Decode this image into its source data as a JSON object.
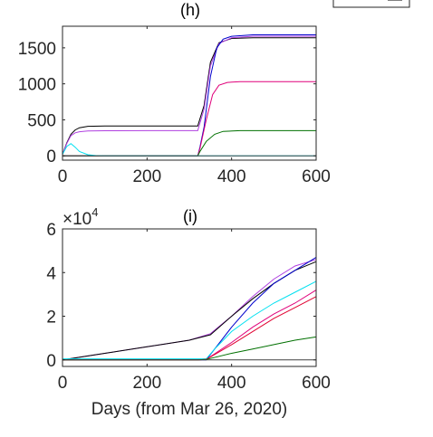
{
  "chart_data": [
    {
      "type": "line",
      "title": "(h)",
      "xlabel": "",
      "ylabel": "",
      "xlim": [
        0,
        600
      ],
      "ylim": [
        -60,
        1800
      ],
      "xticks": [
        "0",
        "200",
        "400",
        "600"
      ],
      "yticks": [
        "0",
        "500",
        "1000",
        "1500"
      ],
      "xtick_values": [
        0,
        200,
        400,
        600
      ],
      "ytick_values": [
        0,
        500,
        1000,
        1500
      ],
      "grid": false,
      "series": [
        {
          "color": "#000000",
          "points": [
            [
              0,
              20
            ],
            [
              10,
              180
            ],
            [
              20,
              300
            ],
            [
              30,
              360
            ],
            [
              40,
              390
            ],
            [
              60,
              410
            ],
            [
              100,
              415
            ],
            [
              200,
              415
            ],
            [
              320,
              415
            ],
            [
              335,
              700
            ],
            [
              350,
              1300
            ],
            [
              370,
              1570
            ],
            [
              400,
              1630
            ],
            [
              450,
              1640
            ],
            [
              600,
              1640
            ]
          ]
        },
        {
          "color": "#b040e0",
          "points": [
            [
              0,
              20
            ],
            [
              10,
              170
            ],
            [
              20,
              280
            ],
            [
              30,
              320
            ],
            [
              40,
              335
            ],
            [
              60,
              345
            ],
            [
              100,
              348
            ],
            [
              200,
              350
            ],
            [
              320,
              350
            ],
            [
              335,
              650
            ],
            [
              350,
              1250
            ],
            [
              370,
              1560
            ],
            [
              400,
              1640
            ],
            [
              450,
              1660
            ],
            [
              600,
              1660
            ]
          ]
        },
        {
          "color": "#0000cc",
          "points": [
            [
              0,
              0
            ],
            [
              320,
              0
            ],
            [
              325,
              120
            ],
            [
              335,
              400
            ],
            [
              350,
              1100
            ],
            [
              365,
              1500
            ],
            [
              380,
              1620
            ],
            [
              400,
              1660
            ],
            [
              450,
              1680
            ],
            [
              600,
              1680
            ]
          ]
        },
        {
          "color": "#e0007a",
          "points": [
            [
              0,
              0
            ],
            [
              320,
              0
            ],
            [
              325,
              100
            ],
            [
              340,
              500
            ],
            [
              355,
              850
            ],
            [
              370,
              980
            ],
            [
              390,
              1020
            ],
            [
              420,
              1030
            ],
            [
              600,
              1030
            ]
          ]
        },
        {
          "color": "#007000",
          "points": [
            [
              0,
              0
            ],
            [
              320,
              0
            ],
            [
              325,
              60
            ],
            [
              340,
              200
            ],
            [
              360,
              300
            ],
            [
              380,
              340
            ],
            [
              420,
              350
            ],
            [
              600,
              350
            ]
          ]
        },
        {
          "color": "#00e0f0",
          "points": [
            [
              0,
              20
            ],
            [
              10,
              130
            ],
            [
              20,
              170
            ],
            [
              30,
              120
            ],
            [
              40,
              60
            ],
            [
              60,
              15
            ],
            [
              80,
              3
            ],
            [
              100,
              0
            ],
            [
              600,
              0
            ]
          ]
        },
        {
          "color": "#404040",
          "points": [
            [
              0,
              0
            ],
            [
              600,
              0
            ]
          ]
        }
      ]
    },
    {
      "type": "line",
      "title": "(i)",
      "xlabel": "Days (from Mar 26, 2020)",
      "ylabel": "",
      "exponent_label": "×10",
      "exponent_power": "4",
      "xlim": [
        0,
        600
      ],
      "ylim": [
        -0.3,
        6
      ],
      "xticks": [
        "0",
        "200",
        "400",
        "600"
      ],
      "yticks": [
        "0",
        "2",
        "4",
        "6"
      ],
      "xtick_values": [
        0,
        200,
        400,
        600
      ],
      "ytick_values": [
        0,
        2,
        4,
        6
      ],
      "grid": false,
      "series": [
        {
          "color": "#b040e0",
          "points": [
            [
              0,
              0
            ],
            [
              100,
              0.3
            ],
            [
              200,
              0.6
            ],
            [
              300,
              0.9
            ],
            [
              350,
              1.2
            ],
            [
              400,
              2.0
            ],
            [
              450,
              2.9
            ],
            [
              500,
              3.7
            ],
            [
              550,
              4.3
            ],
            [
              600,
              4.6
            ]
          ]
        },
        {
          "color": "#000000",
          "points": [
            [
              0,
              0
            ],
            [
              100,
              0.3
            ],
            [
              200,
              0.6
            ],
            [
              300,
              0.9
            ],
            [
              350,
              1.15
            ],
            [
              400,
              2.0
            ],
            [
              450,
              2.8
            ],
            [
              500,
              3.5
            ],
            [
              550,
              4.1
            ],
            [
              600,
              4.5
            ]
          ]
        },
        {
          "color": "#0000cc",
          "points": [
            [
              0,
              0
            ],
            [
              320,
              0
            ],
            [
              340,
              0
            ],
            [
              360,
              0.5
            ],
            [
              400,
              1.5
            ],
            [
              450,
              2.6
            ],
            [
              500,
              3.5
            ],
            [
              550,
              4.1
            ],
            [
              600,
              4.7
            ]
          ]
        },
        {
          "color": "#00e0f0",
          "points": [
            [
              0,
              0.05
            ],
            [
              300,
              0.05
            ],
            [
              340,
              0.05
            ],
            [
              360,
              0.5
            ],
            [
              400,
              1.3
            ],
            [
              450,
              2.0
            ],
            [
              500,
              2.6
            ],
            [
              550,
              3.1
            ],
            [
              600,
              3.6
            ]
          ]
        },
        {
          "color": "#e0007a",
          "points": [
            [
              0,
              0
            ],
            [
              320,
              0
            ],
            [
              340,
              0.02
            ],
            [
              400,
              0.8
            ],
            [
              450,
              1.5
            ],
            [
              500,
              2.1
            ],
            [
              550,
              2.6
            ],
            [
              600,
              3.2
            ]
          ]
        },
        {
          "color": "#e00030",
          "points": [
            [
              0,
              0
            ],
            [
              320,
              0
            ],
            [
              340,
              0.02
            ],
            [
              400,
              0.7
            ],
            [
              450,
              1.3
            ],
            [
              500,
              1.9
            ],
            [
              550,
              2.4
            ],
            [
              600,
              2.9
            ]
          ]
        },
        {
          "color": "#007000",
          "points": [
            [
              0,
              0
            ],
            [
              320,
              0
            ],
            [
              340,
              0.02
            ],
            [
              400,
              0.3
            ],
            [
              450,
              0.5
            ],
            [
              500,
              0.7
            ],
            [
              550,
              0.9
            ],
            [
              600,
              1.05
            ]
          ]
        },
        {
          "color": "#404040",
          "points": [
            [
              0,
              0
            ],
            [
              600,
              0
            ]
          ]
        }
      ]
    }
  ]
}
